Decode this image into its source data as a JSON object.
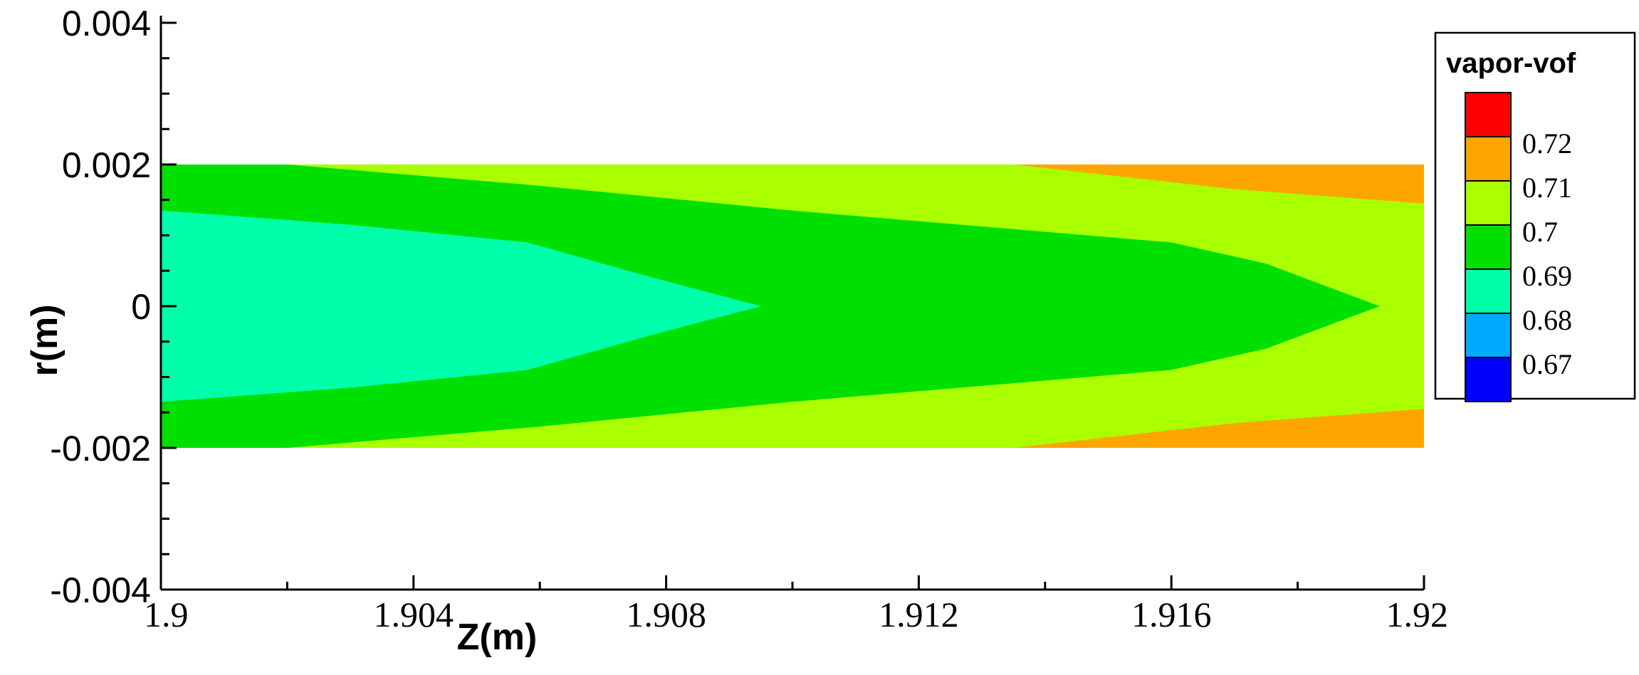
{
  "chart_data": {
    "type": "heatmap",
    "title": "",
    "xlabel": "Z(m)",
    "ylabel": "r(m)",
    "xlim": [
      1.9,
      1.92
    ],
    "ylim": [
      -0.004,
      0.004
    ],
    "x_ticks": [
      "1.9",
      "1.904",
      "1.908",
      "1.912",
      "1.916",
      "1.92"
    ],
    "y_ticks": [
      "0.004",
      "0.002",
      "0",
      "-0.002",
      "-0.004"
    ],
    "legend": {
      "title": "vapor-vof",
      "placement": "right",
      "levels": [
        {
          "label": "",
          "color": "#ff0000"
        },
        {
          "label": "0.72",
          "color": "#ffa500"
        },
        {
          "label": "0.71",
          "color": "#aaff00"
        },
        {
          "label": "0.7",
          "color": "#00e000"
        },
        {
          "label": "0.69",
          "color": "#00ffaa"
        },
        {
          "label": "0.68",
          "color": "#00aaff"
        },
        {
          "label": "0.67",
          "color": "#0000ff"
        }
      ]
    },
    "domain": {
      "z_range": [
        1.9,
        1.92
      ],
      "r_range": [
        -0.002,
        0.002
      ],
      "base_color": "#aaff00"
    },
    "regions": [
      {
        "level": "0.72",
        "color": "#ffa500",
        "points": [
          [
            1.9135,
            0.002
          ],
          [
            1.92,
            0.002
          ],
          [
            1.92,
            0.00145
          ],
          [
            1.917,
            0.00165
          ]
        ]
      },
      {
        "level": "0.72",
        "color": "#ffa500",
        "points": [
          [
            1.9135,
            -0.002
          ],
          [
            1.92,
            -0.002
          ],
          [
            1.92,
            -0.00145
          ],
          [
            1.917,
            -0.00165
          ]
        ]
      },
      {
        "level": "0.7",
        "color": "#00e000",
        "points": [
          [
            1.9,
            0.002
          ],
          [
            1.902,
            0.002
          ],
          [
            1.906,
            0.0017
          ],
          [
            1.91,
            0.00135
          ],
          [
            1.914,
            0.00105
          ],
          [
            1.916,
            0.0009
          ],
          [
            1.9175,
            0.0006
          ],
          [
            1.9193,
            0.0
          ],
          [
            1.9175,
            -0.0006
          ],
          [
            1.916,
            -0.0009
          ],
          [
            1.914,
            -0.00105
          ],
          [
            1.91,
            -0.00135
          ],
          [
            1.906,
            -0.0017
          ],
          [
            1.902,
            -0.002
          ],
          [
            1.9,
            -0.002
          ]
        ]
      },
      {
        "level": "0.69",
        "color": "#00ffaa",
        "points": [
          [
            1.9,
            0.00135
          ],
          [
            1.903,
            0.00115
          ],
          [
            1.9058,
            0.0009
          ],
          [
            1.9078,
            0.0004
          ],
          [
            1.9095,
            0.0
          ],
          [
            1.9078,
            -0.0004
          ],
          [
            1.9058,
            -0.0009
          ],
          [
            1.903,
            -0.00115
          ],
          [
            1.9,
            -0.00135
          ]
        ]
      }
    ]
  }
}
